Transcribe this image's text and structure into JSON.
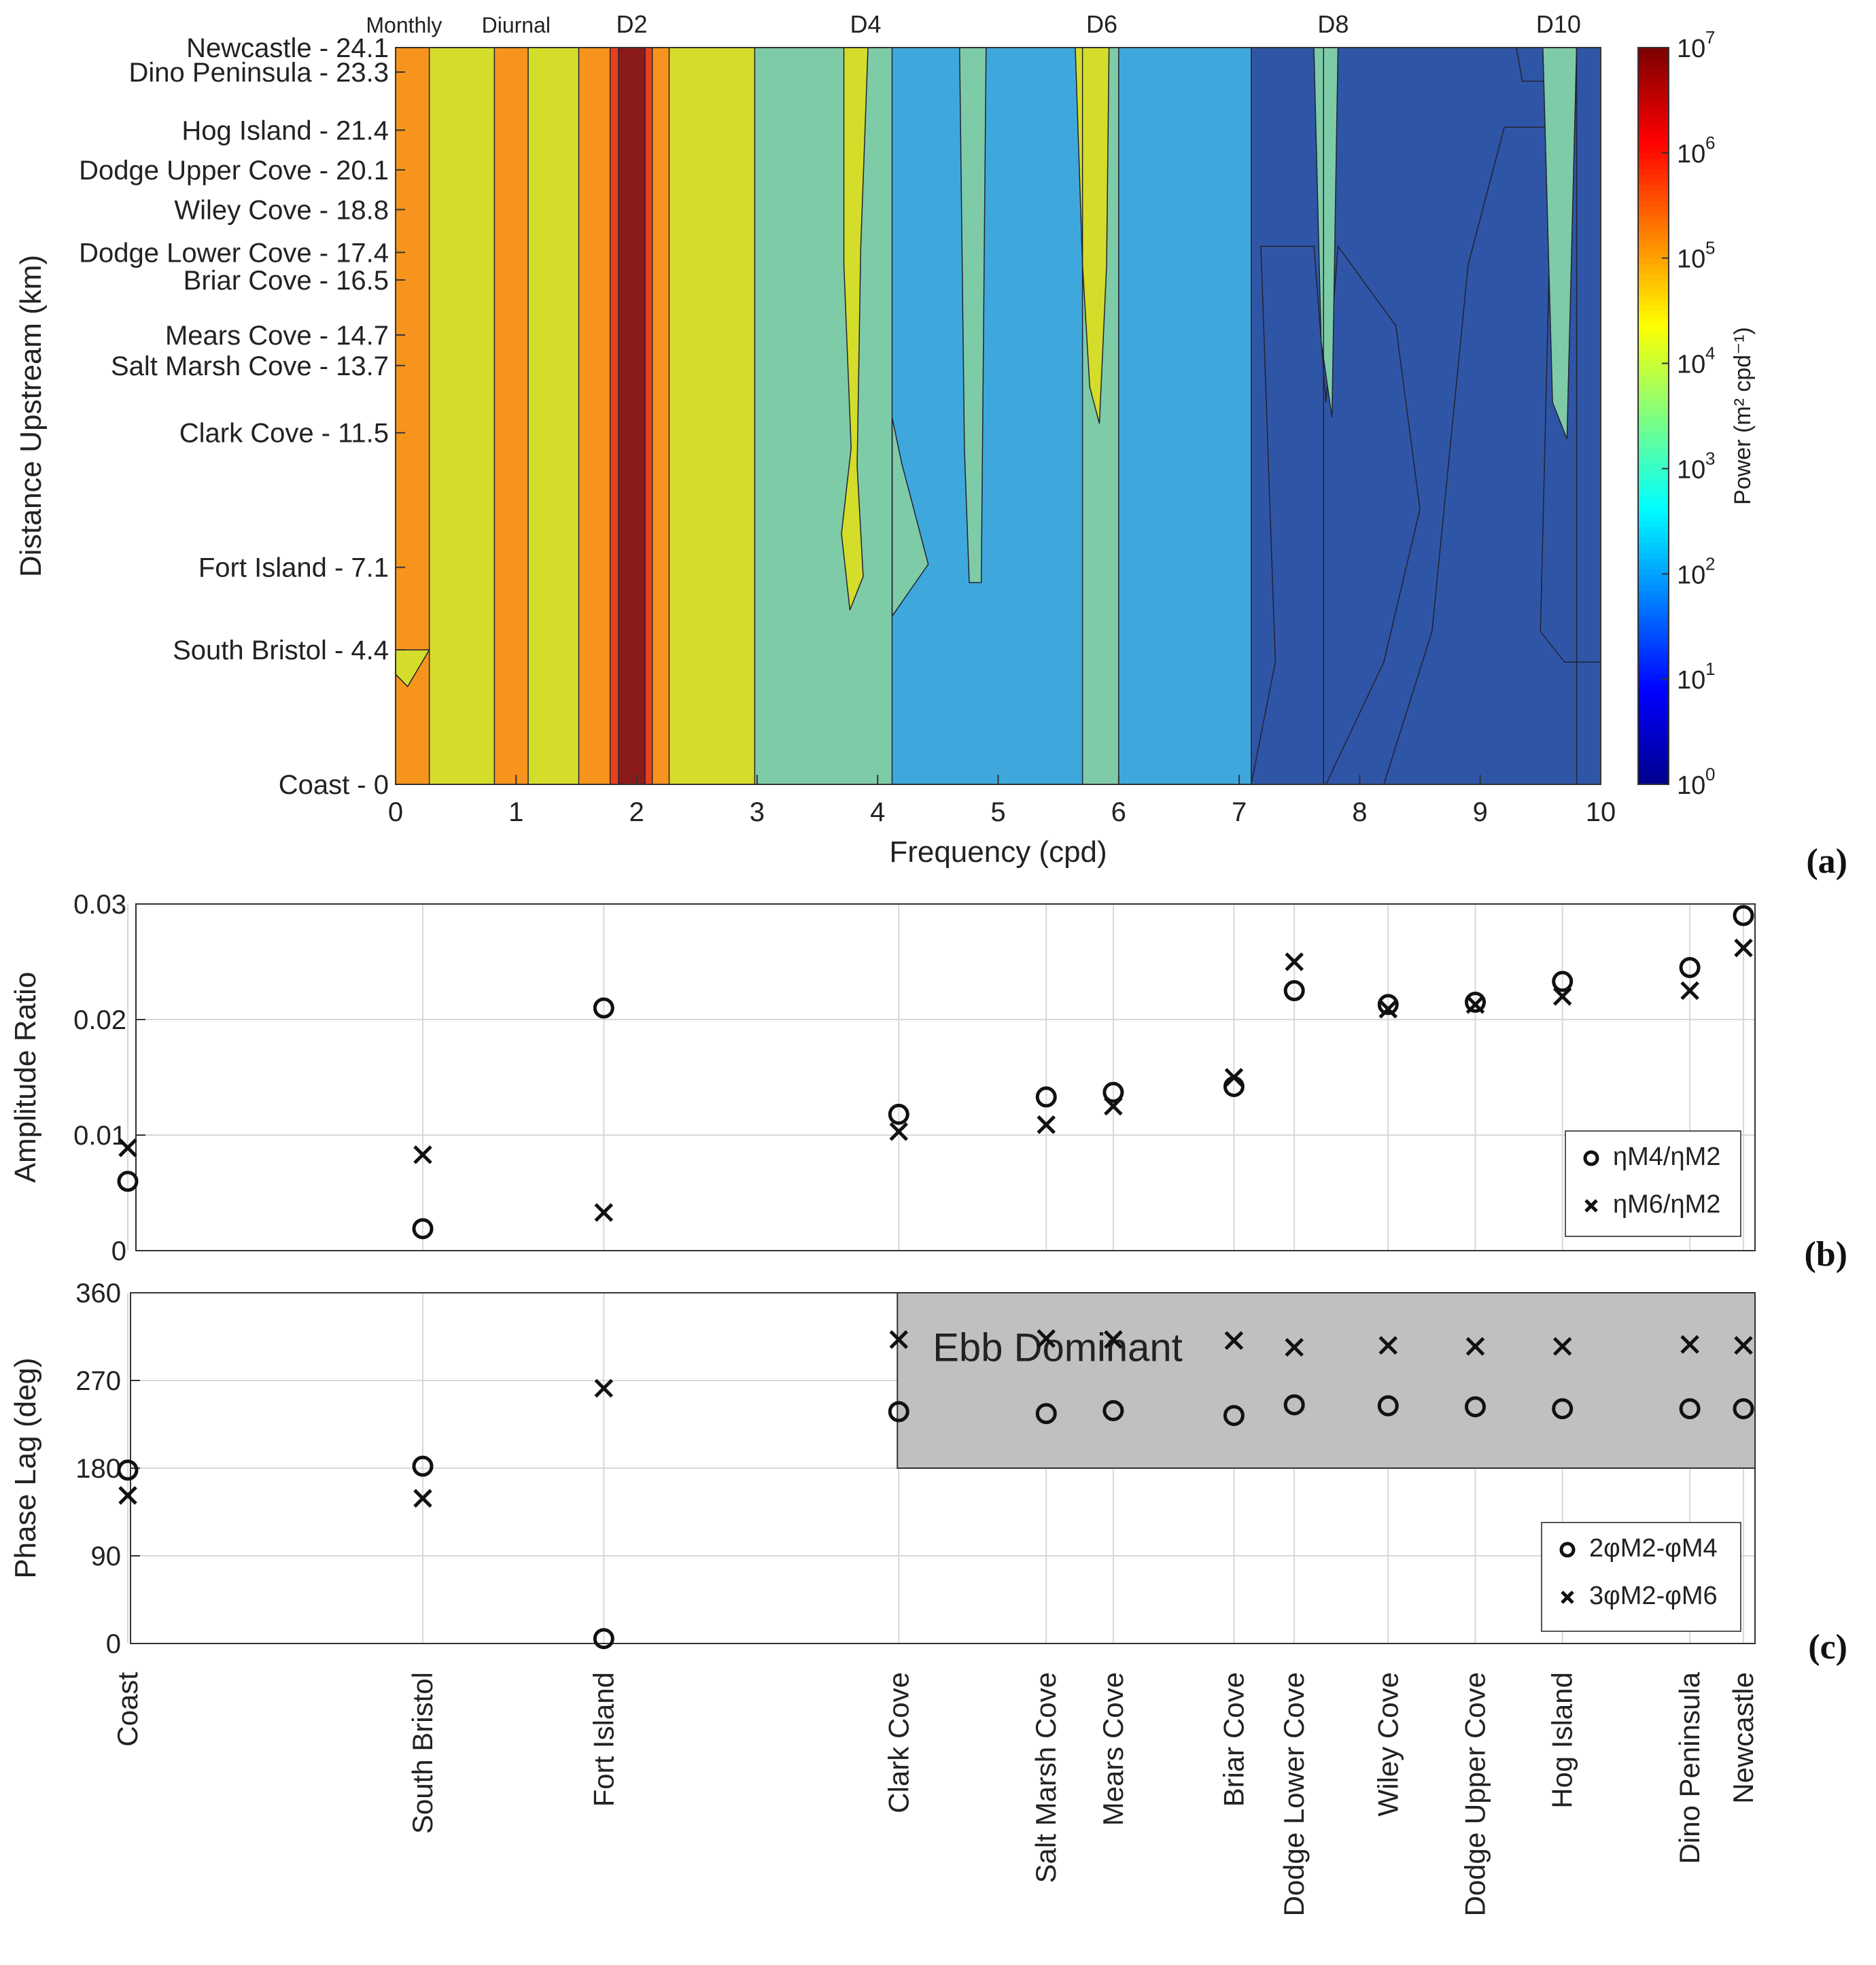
{
  "chart_data": [
    {
      "panel": "(a)",
      "type": "heatmap",
      "xlabel": "Frequency (cpd)",
      "ylabel": "Distance Upstream (km)",
      "xlim": [
        0,
        10
      ],
      "ylim": [
        0,
        24.1
      ],
      "x_ticks": [
        "0",
        "1",
        "2",
        "3",
        "4",
        "5",
        "6",
        "7",
        "8",
        "9",
        "10"
      ],
      "y_stations": [
        {
          "label": "Newcastle - 24.1",
          "km": 24.1
        },
        {
          "label": "Dino Peninsula - 23.3",
          "km": 23.3
        },
        {
          "label": "Hog Island - 21.4",
          "km": 21.4
        },
        {
          "label": "Dodge Upper Cove - 20.1",
          "km": 20.1
        },
        {
          "label": "Wiley Cove - 18.8",
          "km": 18.8
        },
        {
          "label": "Dodge Lower Cove - 17.4",
          "km": 17.4
        },
        {
          "label": "Briar Cove - 16.5",
          "km": 16.5
        },
        {
          "label": "Mears Cove - 14.7",
          "km": 14.7
        },
        {
          "label": "Salt Marsh Cove - 13.7",
          "km": 13.7
        },
        {
          "label": "Clark Cove - 11.5",
          "km": 11.5
        },
        {
          "label": "Fort Island - 7.1",
          "km": 7.1
        },
        {
          "label": "South Bristol - 4.4",
          "km": 4.4
        },
        {
          "label": "Coast - 0",
          "km": 0
        }
      ],
      "band_labels": [
        {
          "label": "Monthly",
          "freq": 0.07
        },
        {
          "label": "Diurnal",
          "freq": 1.0
        },
        {
          "label": "D2",
          "freq": 1.96
        },
        {
          "label": "D4",
          "freq": 3.9
        },
        {
          "label": "D6",
          "freq": 5.86
        },
        {
          "label": "D8",
          "freq": 7.78
        },
        {
          "label": "D10",
          "freq": 9.65
        }
      ],
      "colorbar": {
        "label": "Power (m² cpd⁻¹)",
        "tick_base": "10",
        "tick_exponents": [
          "0",
          "1",
          "2",
          "3",
          "4",
          "5",
          "6",
          "7"
        ],
        "range_log10": [
          0,
          7
        ]
      },
      "bands": [
        {
          "f0": 0.0,
          "f1": 0.28,
          "log10_power": 4.8
        },
        {
          "f0": 0.28,
          "f1": 0.82,
          "log10_power": 4.0
        },
        {
          "f0": 0.82,
          "f1": 1.1,
          "log10_power": 4.8
        },
        {
          "f0": 1.1,
          "f1": 1.52,
          "log10_power": 4.0
        },
        {
          "f0": 1.52,
          "f1": 1.78,
          "log10_power": 4.8
        },
        {
          "f0": 1.78,
          "f1": 1.85,
          "log10_power": 5.6
        },
        {
          "f0": 1.85,
          "f1": 2.07,
          "log10_power": 6.5
        },
        {
          "f0": 2.07,
          "f1": 2.13,
          "log10_power": 5.6
        },
        {
          "f0": 2.13,
          "f1": 2.27,
          "log10_power": 4.8
        },
        {
          "f0": 2.27,
          "f1": 2.98,
          "log10_power": 4.0
        },
        {
          "f0": 2.98,
          "f1": 4.12,
          "log10_power": 3.1
        },
        {
          "f0": 4.12,
          "f1": 5.7,
          "log10_power": 2.3
        },
        {
          "f0": 5.7,
          "f1": 6.0,
          "log10_power": 3.1
        },
        {
          "f0": 6.0,
          "f1": 7.1,
          "log10_power": 2.3
        },
        {
          "f0": 7.1,
          "f1": 7.7,
          "log10_power": 1.5
        },
        {
          "f0": 7.7,
          "f1": 9.8,
          "log10_power": 1.5
        },
        {
          "f0": 9.8,
          "f1": 10.0,
          "log10_power": 1.5
        }
      ]
    },
    {
      "panel": "(b)",
      "type": "scatter",
      "ylabel": "Amplitude Ratio",
      "ylim": [
        0,
        0.03
      ],
      "y_ticks": [
        "0",
        "0.01",
        "0.02",
        "0.03"
      ],
      "legend": [
        "ηM4/ηM2",
        "ηM6/ηM2"
      ],
      "legend_position": "lower-right",
      "series": [
        {
          "name": "ηM4/ηM2",
          "marker": "circle",
          "values": [
            0.006,
            0.0019,
            0.021,
            0.0118,
            0.0133,
            0.0137,
            0.0142,
            0.0225,
            0.0213,
            0.0215,
            0.0233,
            0.0245,
            0.029
          ]
        },
        {
          "name": "ηM6/ηM2",
          "marker": "x",
          "values": [
            0.0089,
            0.0083,
            0.0033,
            0.0103,
            0.0109,
            0.0125,
            0.015,
            0.025,
            0.0209,
            0.0213,
            0.022,
            0.0225,
            0.0262
          ]
        }
      ]
    },
    {
      "panel": "(c)",
      "type": "scatter",
      "ylabel": "Phase Lag (deg)",
      "ylim": [
        0,
        360
      ],
      "y_ticks": [
        "0",
        "90",
        "180",
        "270",
        "360"
      ],
      "shaded_region": {
        "label": "Ebb Dominant",
        "x_from_station": "Clark Cove",
        "y_range": [
          180,
          360
        ]
      },
      "legend": [
        "2φM2-φM4",
        "3φM2-φM6"
      ],
      "legend_position": "lower-right",
      "series": [
        {
          "name": "2φM2-φM4",
          "marker": "circle",
          "values": [
            178,
            182,
            5,
            238,
            236,
            239,
            234,
            245,
            244,
            243,
            241,
            241,
            241
          ]
        },
        {
          "name": "3φM2-φM6",
          "marker": "x",
          "values": [
            152,
            149,
            262,
            312,
            313,
            312,
            311,
            304,
            306,
            305,
            305,
            307,
            306
          ]
        }
      ],
      "x_stations": [
        "Coast",
        "South Bristol",
        "Fort Island",
        "Clark Cove",
        "Salt Marsh Cove",
        "Mears Cove",
        "Briar Cove",
        "Dodge Lower Cove",
        "Wiley Cove",
        "Dodge Upper Cove",
        "Hog Island",
        "Dino Peninsula",
        "Newcastle"
      ],
      "x_km": [
        0,
        4.4,
        7.1,
        11.5,
        13.7,
        14.7,
        16.5,
        17.4,
        18.8,
        20.1,
        21.4,
        23.3,
        24.1
      ]
    }
  ],
  "panel_labels": [
    "(a)",
    "(b)",
    "(c)"
  ]
}
